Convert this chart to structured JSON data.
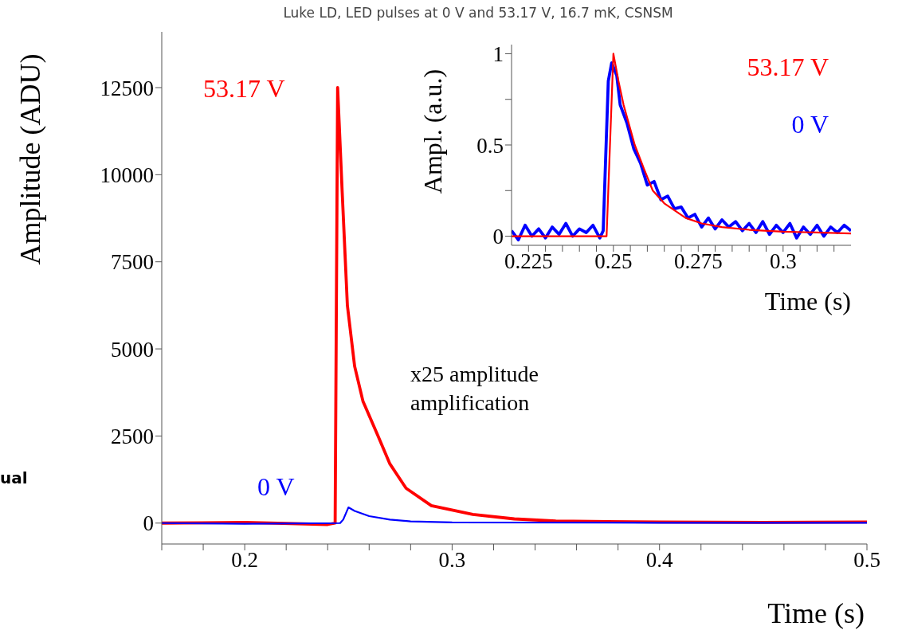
{
  "chart_data": [
    {
      "type": "line",
      "title": "Luke LD, LED pulses at 0 V and 53.17 V, 16.7 mK, CSNSM",
      "xlabel": "Time (s)",
      "ylabel": "Amplitude (ADU)",
      "marker": "none",
      "xlim": [
        0.16,
        0.5
      ],
      "ylim": [
        -600,
        14100
      ],
      "xticks": [
        {
          "value": 0.16,
          "label": null
        },
        {
          "value": 0.18,
          "label": null
        },
        0.2,
        {
          "value": 0.22,
          "label": null
        },
        {
          "value": 0.24,
          "label": null
        },
        {
          "value": 0.26,
          "label": null
        },
        {
          "value": 0.28,
          "label": null
        },
        0.3,
        {
          "value": 0.32,
          "label": null
        },
        {
          "value": 0.34,
          "label": null
        },
        {
          "value": 0.36,
          "label": null
        },
        {
          "value": 0.38,
          "label": null
        },
        0.4,
        {
          "value": 0.42,
          "label": null
        },
        {
          "value": 0.44,
          "label": null
        },
        {
          "value": 0.46,
          "label": null
        },
        {
          "value": 0.48,
          "label": null
        },
        0.5
      ],
      "yticks": [
        0,
        2500,
        5000,
        7500,
        10000,
        12500
      ],
      "annotations": [
        "x25 amplitude\namplification",
        "ual"
      ],
      "series": [
        {
          "name": "53.17 V",
          "color": "#ff0000",
          "x": [
            0.16,
            0.2,
            0.24,
            0.2436,
            0.2448,
            0.247,
            0.2495,
            0.253,
            0.257,
            0.2643,
            0.27,
            0.2778,
            0.29,
            0.31,
            0.33,
            0.35,
            0.4,
            0.45,
            0.5
          ],
          "values": [
            0,
            20,
            -40,
            0,
            12500,
            9500,
            6250,
            4500,
            3500,
            2500,
            1700,
            1000,
            500,
            250,
            120,
            60,
            30,
            20,
            30
          ]
        },
        {
          "name": "0 V",
          "color": "#0000ff",
          "x": [
            0.16,
            0.2,
            0.246,
            0.2475,
            0.25,
            0.253,
            0.26,
            0.27,
            0.28,
            0.3,
            0.4,
            0.5
          ],
          "values": [
            0,
            -20,
            0,
            100,
            450,
            350,
            200,
            100,
            50,
            20,
            10,
            10
          ]
        }
      ]
    },
    {
      "type": "line",
      "xlabel": "Time (s)",
      "ylabel": "Ampl. (a.u.)",
      "marker": "none",
      "xlim": [
        0.22,
        0.32
      ],
      "ylim": [
        -0.05,
        1.05
      ],
      "xticks": [
        0.225,
        {
          "value": 0.23,
          "label": null
        },
        {
          "value": 0.235,
          "label": null
        },
        {
          "value": 0.24,
          "label": null
        },
        {
          "value": 0.245,
          "label": null
        },
        0.25,
        {
          "value": 0.255,
          "label": null
        },
        {
          "value": 0.26,
          "label": null
        },
        {
          "value": 0.265,
          "label": null
        },
        {
          "value": 0.27,
          "label": null
        },
        0.275,
        {
          "value": 0.28,
          "label": null
        },
        {
          "value": 0.285,
          "label": null
        },
        {
          "value": 0.29,
          "label": null
        },
        {
          "value": 0.295,
          "label": null
        },
        0.3,
        {
          "value": 0.305,
          "label": null
        },
        {
          "value": 0.31,
          "label": null
        },
        {
          "value": 0.315,
          "label": null
        }
      ],
      "yticks": [
        0,
        {
          "value": 0.25,
          "label": null
        },
        0.5,
        {
          "value": 0.75,
          "label": null
        },
        1
      ],
      "series": [
        {
          "name": "0 V",
          "color": "#0000ff",
          "x": [
            0.22,
            0.222,
            0.224,
            0.226,
            0.228,
            0.23,
            0.232,
            0.234,
            0.236,
            0.238,
            0.24,
            0.242,
            0.244,
            0.246,
            0.247,
            0.2485,
            0.2495,
            0.251,
            0.252,
            0.254,
            0.256,
            0.258,
            0.26,
            0.262,
            0.264,
            0.266,
            0.268,
            0.27,
            0.272,
            0.274,
            0.276,
            0.278,
            0.28,
            0.282,
            0.284,
            0.286,
            0.288,
            0.29,
            0.292,
            0.294,
            0.296,
            0.298,
            0.3,
            0.302,
            0.304,
            0.306,
            0.308,
            0.31,
            0.312,
            0.314,
            0.316,
            0.318,
            0.32
          ],
          "values": [
            0.03,
            -0.02,
            0.06,
            0,
            0.04,
            -0.01,
            0.05,
            0.01,
            0.07,
            0,
            0.04,
            0.02,
            0.06,
            -0.01,
            0.03,
            0.85,
            0.95,
            0.88,
            0.72,
            0.62,
            0.48,
            0.4,
            0.28,
            0.3,
            0.2,
            0.22,
            0.15,
            0.16,
            0.1,
            0.12,
            0.05,
            0.1,
            0.04,
            0.09,
            0.05,
            0.08,
            0.03,
            0.07,
            0.02,
            0.08,
            0.01,
            0.06,
            0.02,
            0.07,
            -0.01,
            0.05,
            0.01,
            0.06,
            0,
            0.05,
            0.02,
            0.06,
            0.03
          ]
        },
        {
          "name": "53.17 V",
          "color": "#ff0000",
          "x": [
            0.22,
            0.248,
            0.25,
            0.2515,
            0.253,
            0.2563,
            0.259,
            0.2616,
            0.265,
            0.2713,
            0.276,
            0.282,
            0.29,
            0.3,
            0.32
          ],
          "values": [
            0,
            0,
            1,
            0.85,
            0.72,
            0.5,
            0.37,
            0.25,
            0.18,
            0.1,
            0.07,
            0.05,
            0.035,
            0.025,
            0.015
          ]
        }
      ]
    }
  ]
}
